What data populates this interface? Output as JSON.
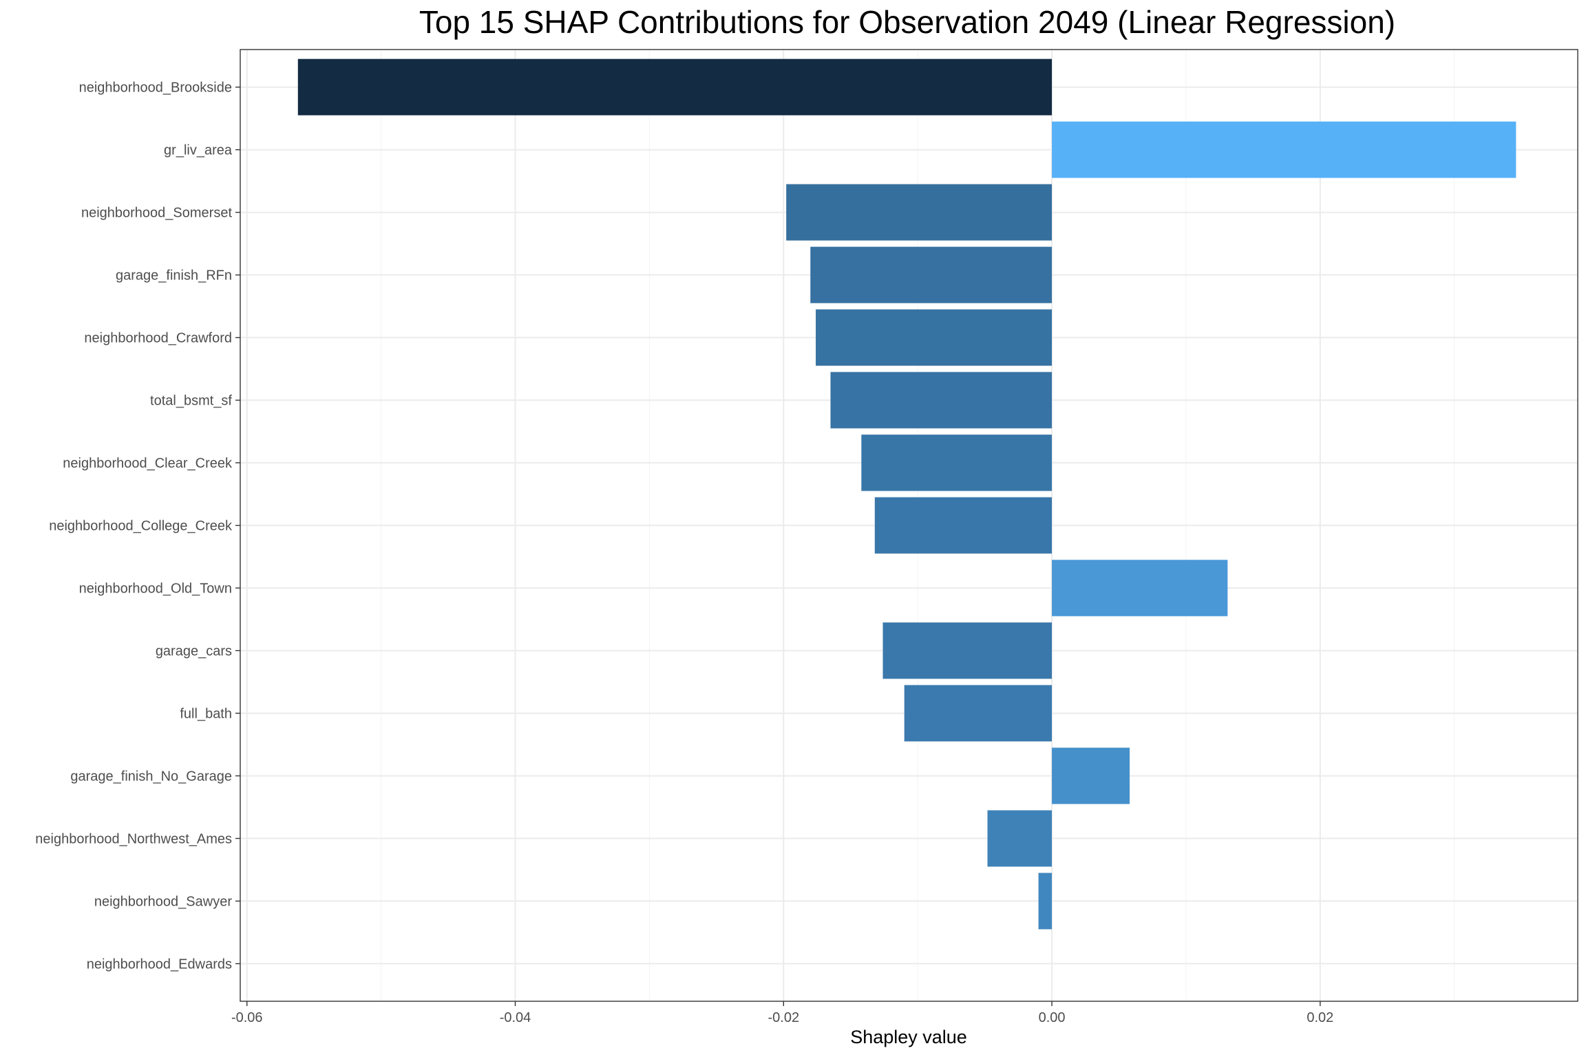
{
  "chart_data": {
    "type": "bar",
    "orientation": "horizontal",
    "title": "Top 15 SHAP Contributions for Observation 2049 (Linear Regression)",
    "xlabel": "Shapley value",
    "ylabel": "",
    "xlim": [
      -0.0605,
      0.0392
    ],
    "xticks": [
      -0.06,
      -0.04,
      -0.02,
      0.0,
      0.02
    ],
    "xtick_labels": [
      "-0.06",
      "-0.04",
      "-0.02",
      "0.00",
      "0.02"
    ],
    "grid": true,
    "legend": "none",
    "colors": {
      "darkest": "#132b43",
      "lightest": "#56b1f7",
      "panel_border": "#333333",
      "grid_major": "#ebebeb",
      "grid_minor": "#f5f5f5"
    },
    "categories": [
      "neighborhood_Brookside",
      "gr_liv_area",
      "neighborhood_Somerset",
      "garage_finish_RFn",
      "neighborhood_Crawford",
      "total_bsmt_sf",
      "neighborhood_Clear_Creek",
      "neighborhood_College_Creek",
      "neighborhood_Old_Town",
      "garage_cars",
      "full_bath",
      "garage_finish_No_Garage",
      "neighborhood_Northwest_Ames",
      "neighborhood_Sawyer",
      "neighborhood_Edwards"
    ],
    "values": [
      -0.0562,
      0.0346,
      -0.0198,
      -0.018,
      -0.0176,
      -0.0165,
      -0.0142,
      -0.0132,
      0.0131,
      -0.0126,
      -0.011,
      0.0058,
      -0.0048,
      -0.001,
      0.0
    ]
  }
}
